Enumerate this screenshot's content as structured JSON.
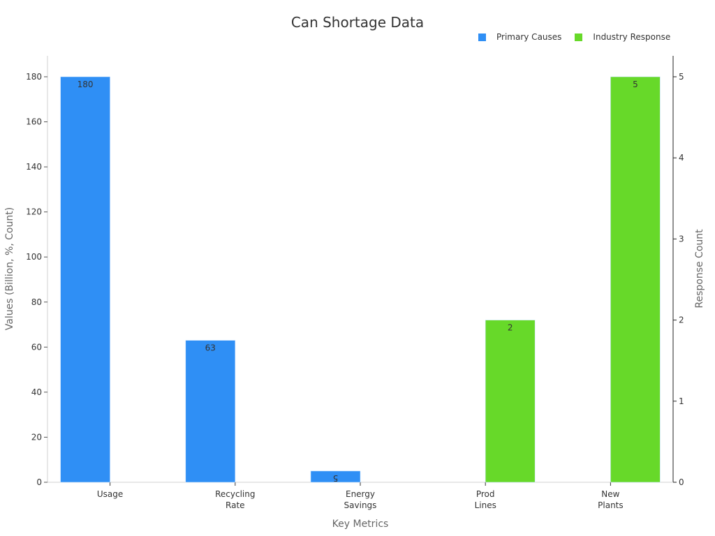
{
  "chart_data": {
    "type": "bar",
    "title": "Can Shortage Data",
    "categories": [
      "Usage",
      "Recycling Rate",
      "Energy Savings",
      "Prod Lines",
      "New Plants"
    ],
    "category_lines": [
      [
        "Usage"
      ],
      [
        "Recycling",
        "Rate"
      ],
      [
        "Energy",
        "Savings"
      ],
      [
        "Prod",
        "Lines"
      ],
      [
        "New",
        "Plants"
      ]
    ],
    "series": [
      {
        "name": "Primary Causes",
        "axis": "left",
        "color": "#2f8ff5",
        "values": [
          180,
          63,
          5,
          null,
          null
        ],
        "labels": [
          "180",
          "63",
          "5",
          null,
          null
        ]
      },
      {
        "name": "Industry Response",
        "axis": "right",
        "color": "#67d929",
        "values": [
          null,
          null,
          null,
          2,
          5
        ],
        "labels": [
          null,
          null,
          null,
          "2",
          "5"
        ]
      }
    ],
    "xlabel": "Key Metrics",
    "ylabel": "Values (Billion, %, Count)",
    "y2label": "Response Count",
    "ylim": [
      0,
      180
    ],
    "y2lim": [
      0,
      5
    ],
    "yticks": [
      0,
      20,
      40,
      60,
      80,
      100,
      120,
      140,
      160,
      180
    ],
    "y2ticks": [
      0,
      1,
      2,
      3,
      4,
      5
    ],
    "grid": false,
    "legend_position": "top-right"
  },
  "title": "Can Shortage Data",
  "legend": [
    {
      "label": "Primary Causes",
      "color": "#2f8ff5"
    },
    {
      "label": "Industry Response",
      "color": "#67d929"
    }
  ],
  "axes": {
    "xlabel": "Key Metrics",
    "ylabel": "Values (Billion, %, Count)",
    "y2label": "Response Count"
  }
}
